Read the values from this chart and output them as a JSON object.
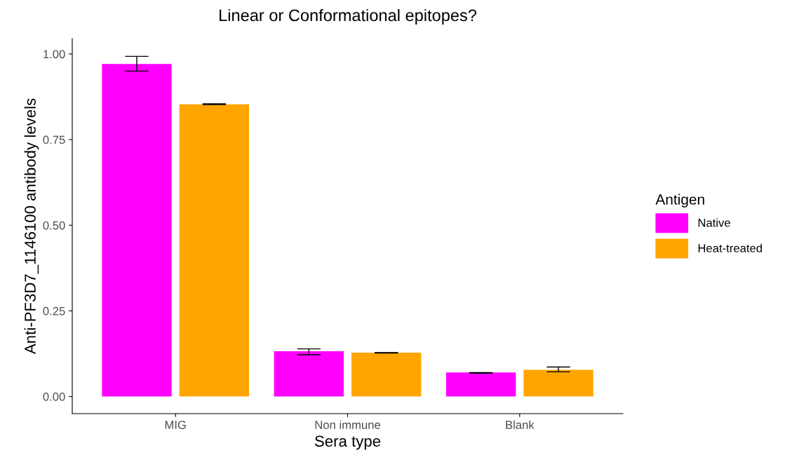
{
  "chart_data": {
    "type": "bar",
    "title": "Linear or Conformational epitopes?",
    "xlabel": "Sera type",
    "ylabel": "Anti-PF3D7_1146100 antibody levels",
    "legend_title": "Antigen",
    "legend": "right",
    "grid": false,
    "categories": [
      "MIG",
      "Non immune",
      "Blank"
    ],
    "series": [
      {
        "name": "Native",
        "color": "#ff00ff",
        "values": [
          0.971,
          0.132,
          0.07
        ],
        "errors": [
          [
            0.95,
            0.993
          ],
          [
            0.122,
            0.139
          ],
          [
            0.068,
            0.07
          ]
        ]
      },
      {
        "name": "Heat-treated",
        "color": "#ffa500",
        "values": [
          0.853,
          0.128,
          0.078
        ],
        "errors": [
          [
            0.852,
            0.855
          ],
          [
            0.127,
            0.128
          ],
          [
            0.072,
            0.086
          ]
        ]
      }
    ],
    "ylim": [
      -0.05,
      1.045
    ],
    "yticks": [
      {
        "value": 0,
        "label": "0.00"
      },
      {
        "value": 0.25,
        "label": "0.25"
      },
      {
        "value": 0.5,
        "label": "0.50"
      },
      {
        "value": 0.75,
        "label": "0.75"
      },
      {
        "value": 1,
        "label": "1.00"
      }
    ]
  }
}
